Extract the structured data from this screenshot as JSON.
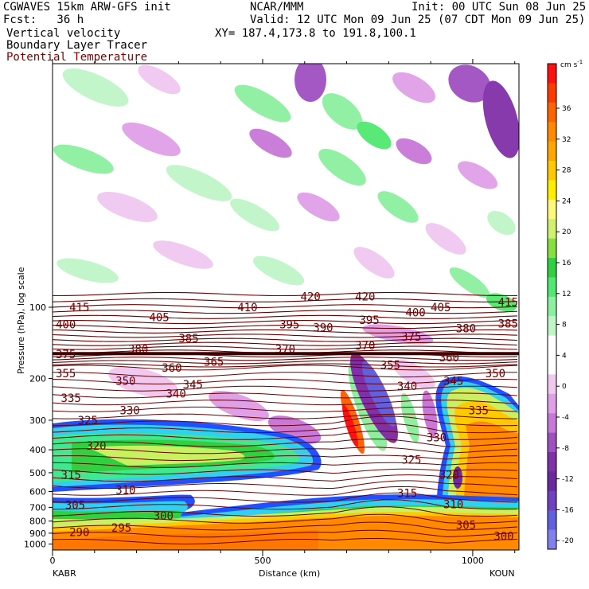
{
  "header": {
    "model": "CGWAVES 15km ARW-GFS init",
    "org": "NCAR/MMM",
    "init": "Init: 00 UTC Sun 08 Jun 25",
    "fcst": "Fcst:   36 h",
    "valid": "Valid: 12 UTC Mon 09 Jun 25 (07 CDT Mon 09 Jun 25)",
    "xy": "XY= 187.4,173.8 to 191.8,100.1",
    "fields": [
      "Vertical velocity",
      "Boundary Layer Tracer",
      "Potential Temperature"
    ]
  },
  "colors": {
    "potential_temperature_text": "#800000",
    "contour": "#6b0000"
  },
  "chart_data": {
    "type": "heatmap",
    "xlabel": "Distance (km)",
    "ylabel": "Pressure (hPa), log scale",
    "xlim": [
      0,
      1110
    ],
    "x_ticks": [
      0,
      500,
      1000
    ],
    "y_scale": "log",
    "y_ticks": [
      100,
      200,
      300,
      400,
      500,
      600,
      700,
      800,
      900,
      1000
    ],
    "endpoints": {
      "left": "KABR",
      "right": "KOUN"
    },
    "colorbar": {
      "units": "cm s-1",
      "tick_labels": [
        "36",
        "32",
        "28",
        "24",
        "20",
        "16",
        "12",
        "8",
        "4",
        "0",
        "-4",
        "-8",
        "-12",
        "-16",
        "-20"
      ],
      "colors": [
        "#ff1010",
        "#ff3a00",
        "#ff6400",
        "#ff8a00",
        "#ffa600",
        "#ffca00",
        "#ffee00",
        "#fff87a",
        "#d0f070",
        "#88e040",
        "#30d040",
        "#50e870",
        "#8cf0a0",
        "#c0f5c8",
        "#ffffff",
        "#ffffff",
        "#f0c8f0",
        "#e0a0e8",
        "#c878d8",
        "#a050c0",
        "#8030a8",
        "#6a2aa0",
        "#7040c0",
        "#6060e0",
        "#8080f0"
      ]
    },
    "theta_labels": [
      {
        "value": "415",
        "x": 40,
        "p": 100
      },
      {
        "value": "410",
        "x": 440,
        "p": 100
      },
      {
        "value": "420",
        "x": 590,
        "p": 90
      },
      {
        "value": "420",
        "x": 720,
        "p": 90
      },
      {
        "value": "405",
        "x": 900,
        "p": 100
      },
      {
        "value": "415",
        "x": 1060,
        "p": 95
      },
      {
        "value": "400",
        "x": -20,
        "p": 118
      },
      {
        "value": "405",
        "x": 230,
        "p": 110
      },
      {
        "value": "395",
        "x": 540,
        "p": 118
      },
      {
        "value": "390",
        "x": 620,
        "p": 122
      },
      {
        "value": "395",
        "x": 730,
        "p": 113
      },
      {
        "value": "400",
        "x": 840,
        "p": 105
      },
      {
        "value": "380",
        "x": 960,
        "p": 123
      },
      {
        "value": "385",
        "x": 1060,
        "p": 117
      },
      {
        "value": "385",
        "x": 300,
        "p": 135
      },
      {
        "value": "375",
        "x": 830,
        "p": 133
      },
      {
        "value": "375",
        "x": -20,
        "p": 158
      },
      {
        "value": "380",
        "x": 180,
        "p": 150
      },
      {
        "value": "370",
        "x": 530,
        "p": 150
      },
      {
        "value": "370",
        "x": 720,
        "p": 145
      },
      {
        "value": "365",
        "x": 360,
        "p": 170
      },
      {
        "value": "360",
        "x": 920,
        "p": 163
      },
      {
        "value": "355",
        "x": 780,
        "p": 175
      },
      {
        "value": "355",
        "x": -20,
        "p": 190
      },
      {
        "value": "360",
        "x": 260,
        "p": 180
      },
      {
        "value": "350",
        "x": 1030,
        "p": 190
      },
      {
        "value": "350",
        "x": 150,
        "p": 205
      },
      {
        "value": "345",
        "x": 930,
        "p": 205
      },
      {
        "value": "345",
        "x": 310,
        "p": 212
      },
      {
        "value": "340",
        "x": 270,
        "p": 232
      },
      {
        "value": "340",
        "x": 820,
        "p": 215
      },
      {
        "value": "335",
        "x": 20,
        "p": 242
      },
      {
        "value": "330",
        "x": 160,
        "p": 272
      },
      {
        "value": "335",
        "x": 990,
        "p": 272
      },
      {
        "value": "325",
        "x": 60,
        "p": 300
      },
      {
        "value": "330",
        "x": 890,
        "p": 355
      },
      {
        "value": "320",
        "x": 80,
        "p": 385
      },
      {
        "value": "325",
        "x": 830,
        "p": 440
      },
      {
        "value": "315",
        "x": 20,
        "p": 510
      },
      {
        "value": "320",
        "x": 920,
        "p": 510
      },
      {
        "value": "310",
        "x": 150,
        "p": 590
      },
      {
        "value": "315",
        "x": 820,
        "p": 610
      },
      {
        "value": "305",
        "x": 30,
        "p": 685
      },
      {
        "value": "310",
        "x": 930,
        "p": 680
      },
      {
        "value": "300",
        "x": 240,
        "p": 760
      },
      {
        "value": "295",
        "x": 140,
        "p": 855
      },
      {
        "value": "305",
        "x": 960,
        "p": 830
      },
      {
        "value": "290",
        "x": 40,
        "p": 890
      },
      {
        "value": "300",
        "x": 1050,
        "p": 925
      }
    ]
  }
}
